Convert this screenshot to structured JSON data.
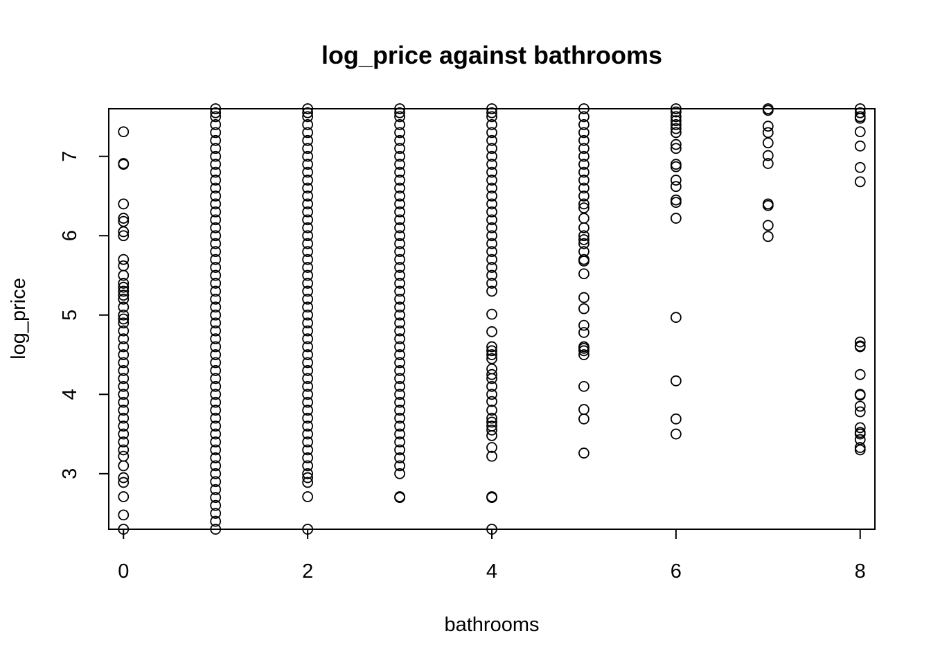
{
  "chart_data": {
    "type": "scatter",
    "title": "log_price against bathrooms",
    "xlabel": "bathrooms",
    "ylabel": "log_price",
    "xlim": [
      -0.16,
      8.16
    ],
    "ylim": [
      2.3,
      7.6
    ],
    "xticks": [
      0,
      2,
      4,
      6,
      8
    ],
    "yticks": [
      3,
      4,
      5,
      6,
      7
    ],
    "grid": false,
    "legend": "none",
    "point_style": "open-circle",
    "series": [
      {
        "points": [
          [
            0,
            7.31
          ],
          [
            0,
            6.91
          ],
          [
            0,
            6.9
          ],
          [
            0,
            6.4
          ],
          [
            0,
            6.22
          ],
          [
            0,
            6.18
          ],
          [
            0,
            6.05
          ],
          [
            0,
            6.0
          ],
          [
            0,
            5.7
          ],
          [
            0,
            5.62
          ],
          [
            0,
            5.5
          ],
          [
            0,
            5.4
          ],
          [
            0,
            5.35
          ],
          [
            0,
            5.3
          ],
          [
            0,
            5.25
          ],
          [
            0,
            5.2
          ],
          [
            0,
            5.1
          ],
          [
            0,
            5.0
          ],
          [
            0,
            4.95
          ],
          [
            0,
            4.9
          ],
          [
            0,
            4.8
          ],
          [
            0,
            4.7
          ],
          [
            0,
            4.6
          ],
          [
            0,
            4.5
          ],
          [
            0,
            4.4
          ],
          [
            0,
            4.3
          ],
          [
            0,
            4.2
          ],
          [
            0,
            4.1
          ],
          [
            0,
            4.0
          ],
          [
            0,
            3.9
          ],
          [
            0,
            3.8
          ],
          [
            0,
            3.7
          ],
          [
            0,
            3.6
          ],
          [
            0,
            3.5
          ],
          [
            0,
            3.4
          ],
          [
            0,
            3.3
          ],
          [
            0,
            3.22
          ],
          [
            0,
            3.1
          ],
          [
            0,
            2.95
          ],
          [
            0,
            2.89
          ],
          [
            0,
            2.71
          ],
          [
            0,
            2.48
          ],
          [
            0,
            2.3
          ],
          [
            1,
            7.6
          ],
          [
            1,
            7.55
          ],
          [
            1,
            7.5
          ],
          [
            1,
            7.4
          ],
          [
            1,
            7.3
          ],
          [
            1,
            7.2
          ],
          [
            1,
            7.1
          ],
          [
            1,
            7.0
          ],
          [
            1,
            6.9
          ],
          [
            1,
            6.8
          ],
          [
            1,
            6.7
          ],
          [
            1,
            6.6
          ],
          [
            1,
            6.5
          ],
          [
            1,
            6.4
          ],
          [
            1,
            6.3
          ],
          [
            1,
            6.2
          ],
          [
            1,
            6.1
          ],
          [
            1,
            6.0
          ],
          [
            1,
            5.9
          ],
          [
            1,
            5.8
          ],
          [
            1,
            5.7
          ],
          [
            1,
            5.6
          ],
          [
            1,
            5.5
          ],
          [
            1,
            5.4
          ],
          [
            1,
            5.3
          ],
          [
            1,
            5.2
          ],
          [
            1,
            5.1
          ],
          [
            1,
            5.0
          ],
          [
            1,
            4.9
          ],
          [
            1,
            4.8
          ],
          [
            1,
            4.7
          ],
          [
            1,
            4.6
          ],
          [
            1,
            4.5
          ],
          [
            1,
            4.4
          ],
          [
            1,
            4.3
          ],
          [
            1,
            4.2
          ],
          [
            1,
            4.1
          ],
          [
            1,
            4.0
          ],
          [
            1,
            3.9
          ],
          [
            1,
            3.8
          ],
          [
            1,
            3.7
          ],
          [
            1,
            3.6
          ],
          [
            1,
            3.5
          ],
          [
            1,
            3.4
          ],
          [
            1,
            3.3
          ],
          [
            1,
            3.2
          ],
          [
            1,
            3.1
          ],
          [
            1,
            3.0
          ],
          [
            1,
            2.9
          ],
          [
            1,
            2.8
          ],
          [
            1,
            2.7
          ],
          [
            1,
            2.6
          ],
          [
            1,
            2.5
          ],
          [
            1,
            2.4
          ],
          [
            1,
            2.3
          ],
          [
            2,
            7.6
          ],
          [
            2,
            7.55
          ],
          [
            2,
            7.5
          ],
          [
            2,
            7.4
          ],
          [
            2,
            7.3
          ],
          [
            2,
            7.2
          ],
          [
            2,
            7.1
          ],
          [
            2,
            7.0
          ],
          [
            2,
            6.9
          ],
          [
            2,
            6.8
          ],
          [
            2,
            6.7
          ],
          [
            2,
            6.6
          ],
          [
            2,
            6.5
          ],
          [
            2,
            6.4
          ],
          [
            2,
            6.3
          ],
          [
            2,
            6.2
          ],
          [
            2,
            6.1
          ],
          [
            2,
            6.0
          ],
          [
            2,
            5.9
          ],
          [
            2,
            5.8
          ],
          [
            2,
            5.7
          ],
          [
            2,
            5.6
          ],
          [
            2,
            5.5
          ],
          [
            2,
            5.4
          ],
          [
            2,
            5.3
          ],
          [
            2,
            5.2
          ],
          [
            2,
            5.1
          ],
          [
            2,
            5.0
          ],
          [
            2,
            4.9
          ],
          [
            2,
            4.8
          ],
          [
            2,
            4.7
          ],
          [
            2,
            4.6
          ],
          [
            2,
            4.5
          ],
          [
            2,
            4.4
          ],
          [
            2,
            4.3
          ],
          [
            2,
            4.2
          ],
          [
            2,
            4.1
          ],
          [
            2,
            4.0
          ],
          [
            2,
            3.9
          ],
          [
            2,
            3.8
          ],
          [
            2,
            3.7
          ],
          [
            2,
            3.6
          ],
          [
            2,
            3.5
          ],
          [
            2,
            3.4
          ],
          [
            2,
            3.3
          ],
          [
            2,
            3.2
          ],
          [
            2,
            3.1
          ],
          [
            2,
            3.0
          ],
          [
            2,
            2.95
          ],
          [
            2,
            2.89
          ],
          [
            2,
            2.71
          ],
          [
            2,
            2.3
          ],
          [
            3,
            7.6
          ],
          [
            3,
            7.55
          ],
          [
            3,
            7.5
          ],
          [
            3,
            7.4
          ],
          [
            3,
            7.3
          ],
          [
            3,
            7.2
          ],
          [
            3,
            7.1
          ],
          [
            3,
            7.0
          ],
          [
            3,
            6.9
          ],
          [
            3,
            6.8
          ],
          [
            3,
            6.7
          ],
          [
            3,
            6.6
          ],
          [
            3,
            6.5
          ],
          [
            3,
            6.4
          ],
          [
            3,
            6.3
          ],
          [
            3,
            6.2
          ],
          [
            3,
            6.1
          ],
          [
            3,
            6.0
          ],
          [
            3,
            5.9
          ],
          [
            3,
            5.8
          ],
          [
            3,
            5.7
          ],
          [
            3,
            5.6
          ],
          [
            3,
            5.5
          ],
          [
            3,
            5.4
          ],
          [
            3,
            5.3
          ],
          [
            3,
            5.2
          ],
          [
            3,
            5.1
          ],
          [
            3,
            5.0
          ],
          [
            3,
            4.9
          ],
          [
            3,
            4.8
          ],
          [
            3,
            4.7
          ],
          [
            3,
            4.6
          ],
          [
            3,
            4.5
          ],
          [
            3,
            4.4
          ],
          [
            3,
            4.3
          ],
          [
            3,
            4.2
          ],
          [
            3,
            4.1
          ],
          [
            3,
            4.0
          ],
          [
            3,
            3.9
          ],
          [
            3,
            3.8
          ],
          [
            3,
            3.7
          ],
          [
            3,
            3.6
          ],
          [
            3,
            3.5
          ],
          [
            3,
            3.4
          ],
          [
            3,
            3.3
          ],
          [
            3,
            3.2
          ],
          [
            3,
            3.1
          ],
          [
            3,
            3.0
          ],
          [
            3,
            2.71
          ],
          [
            3,
            2.7
          ],
          [
            4,
            7.6
          ],
          [
            4,
            7.55
          ],
          [
            4,
            7.5
          ],
          [
            4,
            7.4
          ],
          [
            4,
            7.3
          ],
          [
            4,
            7.2
          ],
          [
            4,
            7.1
          ],
          [
            4,
            7.0
          ],
          [
            4,
            6.9
          ],
          [
            4,
            6.8
          ],
          [
            4,
            6.7
          ],
          [
            4,
            6.6
          ],
          [
            4,
            6.5
          ],
          [
            4,
            6.4
          ],
          [
            4,
            6.3
          ],
          [
            4,
            6.2
          ],
          [
            4,
            6.1
          ],
          [
            4,
            6.0
          ],
          [
            4,
            5.9
          ],
          [
            4,
            5.8
          ],
          [
            4,
            5.7
          ],
          [
            4,
            5.6
          ],
          [
            4,
            5.5
          ],
          [
            4,
            5.4
          ],
          [
            4,
            5.3
          ],
          [
            4,
            5.01
          ],
          [
            4,
            4.79
          ],
          [
            4,
            4.6
          ],
          [
            4,
            4.55
          ],
          [
            4,
            4.5
          ],
          [
            4,
            4.45
          ],
          [
            4,
            4.32
          ],
          [
            4,
            4.25
          ],
          [
            4,
            4.2
          ],
          [
            4,
            4.1
          ],
          [
            4,
            4.0
          ],
          [
            4,
            3.91
          ],
          [
            4,
            3.8
          ],
          [
            4,
            3.7
          ],
          [
            4,
            3.65
          ],
          [
            4,
            3.6
          ],
          [
            4,
            3.55
          ],
          [
            4,
            3.48
          ],
          [
            4,
            3.33
          ],
          [
            4,
            3.22
          ],
          [
            4,
            2.71
          ],
          [
            4,
            2.7
          ],
          [
            4,
            2.3
          ],
          [
            5,
            7.6
          ],
          [
            5,
            7.5
          ],
          [
            5,
            7.4
          ],
          [
            5,
            7.3
          ],
          [
            5,
            7.2
          ],
          [
            5,
            7.1
          ],
          [
            5,
            7.0
          ],
          [
            5,
            6.9
          ],
          [
            5,
            6.8
          ],
          [
            5,
            6.7
          ],
          [
            5,
            6.6
          ],
          [
            5,
            6.5
          ],
          [
            5,
            6.4
          ],
          [
            5,
            6.35
          ],
          [
            5,
            6.22
          ],
          [
            5,
            6.1
          ],
          [
            5,
            6.0
          ],
          [
            5,
            5.95
          ],
          [
            5,
            5.9
          ],
          [
            5,
            5.8
          ],
          [
            5,
            5.7
          ],
          [
            5,
            5.68
          ],
          [
            5,
            5.52
          ],
          [
            5,
            5.22
          ],
          [
            5,
            5.08
          ],
          [
            5,
            4.87
          ],
          [
            5,
            4.78
          ],
          [
            5,
            4.6
          ],
          [
            5,
            4.58
          ],
          [
            5,
            4.55
          ],
          [
            5,
            4.5
          ],
          [
            5,
            4.1
          ],
          [
            5,
            3.81
          ],
          [
            5,
            3.69
          ],
          [
            5,
            3.26
          ],
          [
            6,
            7.6
          ],
          [
            6,
            7.56
          ],
          [
            6,
            7.5
          ],
          [
            6,
            7.45
          ],
          [
            6,
            7.4
          ],
          [
            6,
            7.35
          ],
          [
            6,
            7.3
          ],
          [
            6,
            7.15
          ],
          [
            6,
            7.1
          ],
          [
            6,
            6.9
          ],
          [
            6,
            6.87
          ],
          [
            6,
            6.7
          ],
          [
            6,
            6.62
          ],
          [
            6,
            6.45
          ],
          [
            6,
            6.42
          ],
          [
            6,
            6.22
          ],
          [
            6,
            4.97
          ],
          [
            6,
            4.17
          ],
          [
            6,
            3.69
          ],
          [
            6,
            3.5
          ],
          [
            7,
            7.6
          ],
          [
            7,
            7.58
          ],
          [
            7,
            7.38
          ],
          [
            7,
            7.3
          ],
          [
            7,
            7.17
          ],
          [
            7,
            7.01
          ],
          [
            7,
            6.91
          ],
          [
            7,
            6.4
          ],
          [
            7,
            6.38
          ],
          [
            7,
            6.13
          ],
          [
            7,
            5.99
          ],
          [
            8,
            7.6
          ],
          [
            8,
            7.55
          ],
          [
            8,
            7.5
          ],
          [
            8,
            7.48
          ],
          [
            8,
            7.31
          ],
          [
            8,
            7.13
          ],
          [
            8,
            6.86
          ],
          [
            8,
            6.68
          ],
          [
            8,
            4.66
          ],
          [
            8,
            4.61
          ],
          [
            8,
            4.6
          ],
          [
            8,
            4.25
          ],
          [
            8,
            4.0
          ],
          [
            8,
            3.99
          ],
          [
            8,
            3.85
          ],
          [
            8,
            3.78
          ],
          [
            8,
            3.58
          ],
          [
            8,
            3.52
          ],
          [
            8,
            3.5
          ],
          [
            8,
            3.43
          ],
          [
            8,
            3.33
          ],
          [
            8,
            3.3
          ]
        ]
      }
    ]
  }
}
